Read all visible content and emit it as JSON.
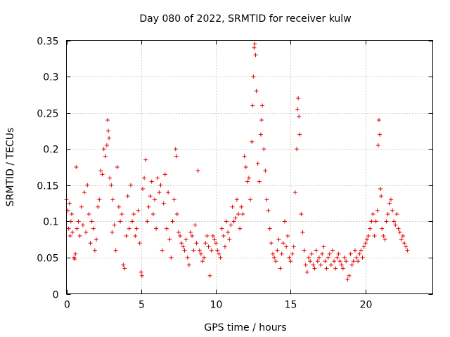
{
  "chart_data": {
    "type": "scatter",
    "title": "Day 080 of 2022, SRMTID for receiver kulw",
    "xlabel": "GPS time / hours",
    "ylabel": "SRMTID / TECUs",
    "xlim": [
      0,
      24.5
    ],
    "ylim": [
      0,
      0.35
    ],
    "xticks": [
      0,
      5,
      10,
      15,
      20
    ],
    "xtick_labels": [
      "0",
      "5",
      "10",
      "15",
      "20"
    ],
    "yticks": [
      0,
      0.05,
      0.1,
      0.15,
      0.2,
      0.25,
      0.3,
      0.35
    ],
    "ytick_labels": [
      "0",
      "0.05",
      "0.1",
      "0.15",
      "0.2",
      "0.25",
      "0.3",
      "0.35"
    ],
    "grid": true,
    "marker": "+",
    "color": "#e00000",
    "series": [
      {
        "name": "SRMTID",
        "points": [
          [
            0.0,
            0.13
          ],
          [
            0.1,
            0.115
          ],
          [
            0.15,
            0.09
          ],
          [
            0.2,
            0.125
          ],
          [
            0.25,
            0.08
          ],
          [
            0.3,
            0.1
          ],
          [
            0.35,
            0.11
          ],
          [
            0.4,
            0.085
          ],
          [
            0.5,
            0.05
          ],
          [
            0.55,
            0.048
          ],
          [
            0.6,
            0.055
          ],
          [
            0.65,
            0.175
          ],
          [
            0.7,
            0.09
          ],
          [
            0.8,
            0.1
          ],
          [
            0.9,
            0.08
          ],
          [
            1.0,
            0.12
          ],
          [
            1.1,
            0.095
          ],
          [
            1.2,
            0.14
          ],
          [
            1.3,
            0.085
          ],
          [
            1.4,
            0.15
          ],
          [
            1.5,
            0.11
          ],
          [
            1.6,
            0.07
          ],
          [
            1.7,
            0.1
          ],
          [
            1.8,
            0.09
          ],
          [
            1.9,
            0.06
          ],
          [
            2.0,
            0.075
          ],
          [
            2.1,
            0.12
          ],
          [
            2.2,
            0.13
          ],
          [
            2.3,
            0.17
          ],
          [
            2.4,
            0.165
          ],
          [
            2.5,
            0.2
          ],
          [
            2.6,
            0.19
          ],
          [
            2.7,
            0.205
          ],
          [
            2.75,
            0.24
          ],
          [
            2.8,
            0.225
          ],
          [
            2.85,
            0.215
          ],
          [
            2.9,
            0.16
          ],
          [
            3.0,
            0.15
          ],
          [
            3.05,
            0.085
          ],
          [
            3.1,
            0.13
          ],
          [
            3.2,
            0.095
          ],
          [
            3.3,
            0.06
          ],
          [
            3.4,
            0.175
          ],
          [
            3.5,
            0.12
          ],
          [
            3.6,
            0.1
          ],
          [
            3.7,
            0.11
          ],
          [
            3.8,
            0.04
          ],
          [
            3.9,
            0.035
          ],
          [
            4.0,
            0.08
          ],
          [
            4.1,
            0.135
          ],
          [
            4.2,
            0.09
          ],
          [
            4.3,
            0.15
          ],
          [
            4.4,
            0.1
          ],
          [
            4.5,
            0.11
          ],
          [
            4.6,
            0.08
          ],
          [
            4.7,
            0.09
          ],
          [
            4.8,
            0.115
          ],
          [
            4.9,
            0.07
          ],
          [
            5.0,
            0.03
          ],
          [
            5.05,
            0.025
          ],
          [
            5.1,
            0.145
          ],
          [
            5.2,
            0.16
          ],
          [
            5.3,
            0.185
          ],
          [
            5.4,
            0.1
          ],
          [
            5.5,
            0.12
          ],
          [
            5.6,
            0.135
          ],
          [
            5.7,
            0.155
          ],
          [
            5.8,
            0.11
          ],
          [
            5.9,
            0.13
          ],
          [
            6.0,
            0.09
          ],
          [
            6.1,
            0.16
          ],
          [
            6.2,
            0.14
          ],
          [
            6.3,
            0.15
          ],
          [
            6.4,
            0.06
          ],
          [
            6.5,
            0.125
          ],
          [
            6.6,
            0.165
          ],
          [
            6.7,
            0.09
          ],
          [
            6.8,
            0.14
          ],
          [
            6.9,
            0.075
          ],
          [
            7.0,
            0.05
          ],
          [
            7.1,
            0.1
          ],
          [
            7.2,
            0.13
          ],
          [
            7.3,
            0.2
          ],
          [
            7.35,
            0.19
          ],
          [
            7.4,
            0.11
          ],
          [
            7.5,
            0.085
          ],
          [
            7.6,
            0.08
          ],
          [
            7.7,
            0.07
          ],
          [
            7.8,
            0.065
          ],
          [
            7.9,
            0.06
          ],
          [
            8.0,
            0.075
          ],
          [
            8.1,
            0.05
          ],
          [
            8.2,
            0.04
          ],
          [
            8.3,
            0.085
          ],
          [
            8.4,
            0.08
          ],
          [
            8.5,
            0.06
          ],
          [
            8.6,
            0.095
          ],
          [
            8.7,
            0.07
          ],
          [
            8.8,
            0.17
          ],
          [
            8.9,
            0.06
          ],
          [
            9.0,
            0.055
          ],
          [
            9.1,
            0.045
          ],
          [
            9.2,
            0.05
          ],
          [
            9.3,
            0.07
          ],
          [
            9.4,
            0.08
          ],
          [
            9.5,
            0.065
          ],
          [
            9.6,
            0.025
          ],
          [
            9.7,
            0.06
          ],
          [
            9.8,
            0.08
          ],
          [
            9.9,
            0.075
          ],
          [
            10.0,
            0.07
          ],
          [
            10.1,
            0.06
          ],
          [
            10.2,
            0.055
          ],
          [
            10.3,
            0.05
          ],
          [
            10.4,
            0.09
          ],
          [
            10.5,
            0.08
          ],
          [
            10.6,
            0.065
          ],
          [
            10.7,
            0.1
          ],
          [
            10.8,
            0.085
          ],
          [
            10.9,
            0.075
          ],
          [
            11.0,
            0.095
          ],
          [
            11.1,
            0.12
          ],
          [
            11.2,
            0.1
          ],
          [
            11.3,
            0.105
          ],
          [
            11.4,
            0.13
          ],
          [
            11.5,
            0.11
          ],
          [
            11.6,
            0.09
          ],
          [
            11.7,
            0.12
          ],
          [
            11.8,
            0.11
          ],
          [
            11.9,
            0.19
          ],
          [
            12.0,
            0.175
          ],
          [
            12.1,
            0.155
          ],
          [
            12.2,
            0.16
          ],
          [
            12.3,
            0.13
          ],
          [
            12.4,
            0.21
          ],
          [
            12.45,
            0.26
          ],
          [
            12.5,
            0.3
          ],
          [
            12.55,
            0.34
          ],
          [
            12.6,
            0.345
          ],
          [
            12.65,
            0.33
          ],
          [
            12.7,
            0.28
          ],
          [
            12.8,
            0.18
          ],
          [
            12.9,
            0.155
          ],
          [
            13.0,
            0.22
          ],
          [
            13.05,
            0.24
          ],
          [
            13.1,
            0.26
          ],
          [
            13.2,
            0.2
          ],
          [
            13.3,
            0.17
          ],
          [
            13.4,
            0.13
          ],
          [
            13.5,
            0.115
          ],
          [
            13.6,
            0.09
          ],
          [
            13.7,
            0.07
          ],
          [
            13.8,
            0.055
          ],
          [
            13.9,
            0.05
          ],
          [
            14.0,
            0.045
          ],
          [
            14.1,
            0.06
          ],
          [
            14.2,
            0.075
          ],
          [
            14.3,
            0.035
          ],
          [
            14.4,
            0.055
          ],
          [
            14.5,
            0.07
          ],
          [
            14.6,
            0.1
          ],
          [
            14.7,
            0.065
          ],
          [
            14.8,
            0.08
          ],
          [
            14.9,
            0.05
          ],
          [
            15.0,
            0.045
          ],
          [
            15.1,
            0.055
          ],
          [
            15.2,
            0.065
          ],
          [
            15.3,
            0.14
          ],
          [
            15.4,
            0.2
          ],
          [
            15.45,
            0.255
          ],
          [
            15.5,
            0.27
          ],
          [
            15.55,
            0.245
          ],
          [
            15.6,
            0.22
          ],
          [
            15.7,
            0.11
          ],
          [
            15.8,
            0.085
          ],
          [
            15.9,
            0.06
          ],
          [
            16.0,
            0.04
          ],
          [
            16.1,
            0.03
          ],
          [
            16.2,
            0.05
          ],
          [
            16.3,
            0.045
          ],
          [
            16.4,
            0.055
          ],
          [
            16.5,
            0.04
          ],
          [
            16.6,
            0.035
          ],
          [
            16.7,
            0.06
          ],
          [
            16.8,
            0.045
          ],
          [
            16.9,
            0.05
          ],
          [
            17.0,
            0.04
          ],
          [
            17.1,
            0.055
          ],
          [
            17.2,
            0.065
          ],
          [
            17.3,
            0.045
          ],
          [
            17.4,
            0.035
          ],
          [
            17.5,
            0.05
          ],
          [
            17.6,
            0.055
          ],
          [
            17.7,
            0.04
          ],
          [
            17.8,
            0.06
          ],
          [
            17.9,
            0.045
          ],
          [
            18.0,
            0.035
          ],
          [
            18.1,
            0.05
          ],
          [
            18.2,
            0.055
          ],
          [
            18.3,
            0.045
          ],
          [
            18.4,
            0.04
          ],
          [
            18.5,
            0.035
          ],
          [
            18.6,
            0.05
          ],
          [
            18.7,
            0.045
          ],
          [
            18.8,
            0.02
          ],
          [
            18.9,
            0.025
          ],
          [
            19.0,
            0.055
          ],
          [
            19.1,
            0.04
          ],
          [
            19.2,
            0.045
          ],
          [
            19.3,
            0.06
          ],
          [
            19.4,
            0.05
          ],
          [
            19.5,
            0.045
          ],
          [
            19.6,
            0.055
          ],
          [
            19.7,
            0.06
          ],
          [
            19.8,
            0.05
          ],
          [
            19.9,
            0.065
          ],
          [
            20.0,
            0.07
          ],
          [
            20.1,
            0.075
          ],
          [
            20.2,
            0.08
          ],
          [
            20.3,
            0.09
          ],
          [
            20.4,
            0.1
          ],
          [
            20.5,
            0.11
          ],
          [
            20.6,
            0.08
          ],
          [
            20.7,
            0.1
          ],
          [
            20.8,
            0.115
          ],
          [
            20.85,
            0.205
          ],
          [
            20.9,
            0.24
          ],
          [
            20.95,
            0.22
          ],
          [
            21.0,
            0.145
          ],
          [
            21.05,
            0.135
          ],
          [
            21.1,
            0.09
          ],
          [
            21.2,
            0.08
          ],
          [
            21.3,
            0.075
          ],
          [
            21.4,
            0.1
          ],
          [
            21.5,
            0.11
          ],
          [
            21.6,
            0.125
          ],
          [
            21.7,
            0.13
          ],
          [
            21.8,
            0.115
          ],
          [
            21.9,
            0.1
          ],
          [
            22.0,
            0.095
          ],
          [
            22.1,
            0.11
          ],
          [
            22.2,
            0.09
          ],
          [
            22.3,
            0.085
          ],
          [
            22.4,
            0.075
          ],
          [
            22.5,
            0.08
          ],
          [
            22.6,
            0.07
          ],
          [
            22.7,
            0.065
          ],
          [
            22.8,
            0.06
          ]
        ]
      }
    ]
  }
}
